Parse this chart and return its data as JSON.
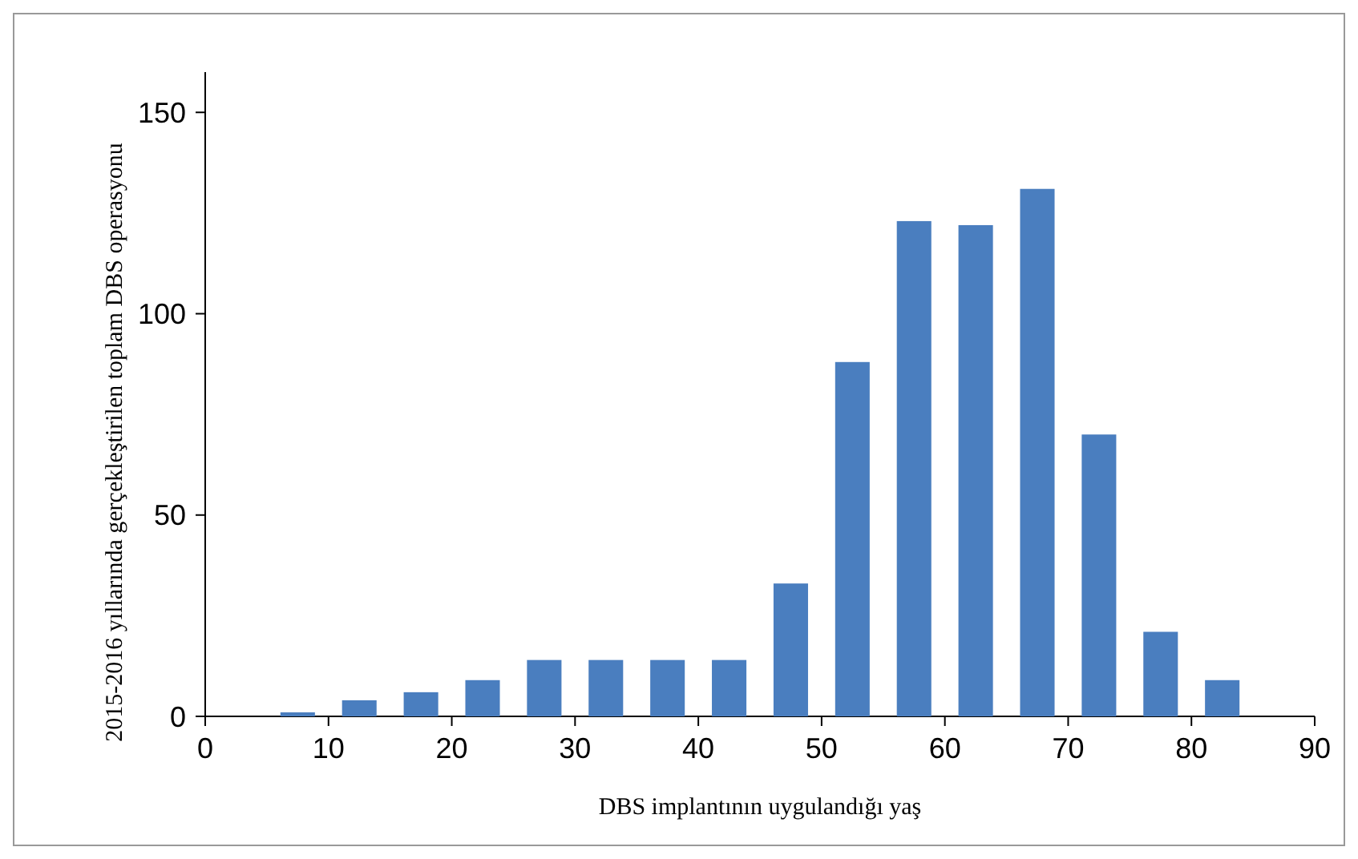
{
  "chart_data": {
    "type": "bar",
    "xlabel": "DBS implantının uygulandığı yaş",
    "ylabel": "2015-2016 yıllarında gerçekleştirilen toplam DBS operasyonu",
    "x": [
      7.5,
      12.5,
      17.5,
      22.5,
      27.5,
      32.5,
      37.5,
      42.5,
      47.5,
      52.5,
      57.5,
      62.5,
      67.5,
      72.5,
      77.5,
      82.5
    ],
    "values": [
      1,
      4,
      6,
      9,
      14,
      14,
      14,
      14,
      33,
      88,
      123,
      122,
      131,
      70,
      21,
      9
    ],
    "color": "#4a7ebf",
    "xlim": [
      0,
      90
    ],
    "xticks": [
      0,
      10,
      20,
      30,
      40,
      50,
      60,
      70,
      80,
      90
    ],
    "ylim": [
      0,
      160
    ],
    "yticks": [
      0,
      50,
      100,
      150
    ],
    "grid": false
  }
}
